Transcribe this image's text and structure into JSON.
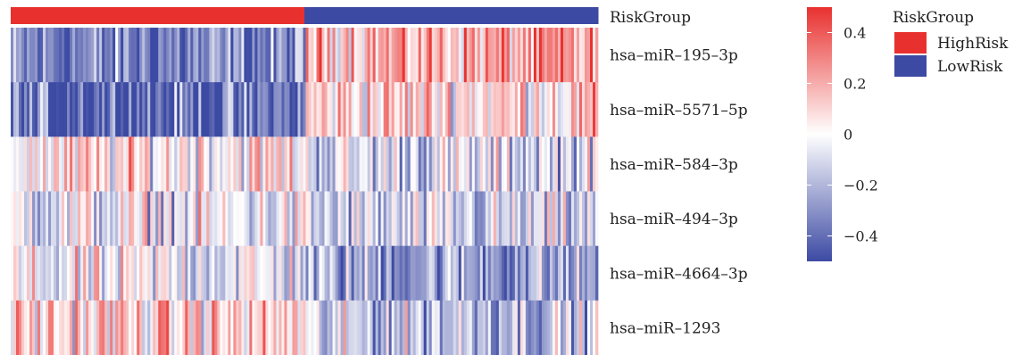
{
  "chart_data": {
    "type": "heatmap",
    "annotation": {
      "label": "RiskGroup",
      "legend_title": "RiskGroup",
      "groups": [
        {
          "name": "HighRisk",
          "color": "#e8312f",
          "fraction": 0.5
        },
        {
          "name": "LowRisk",
          "color": "#3c4aa3",
          "fraction": 0.5
        }
      ]
    },
    "rows": [
      "hsa–miR–195–3p",
      "hsa–miR–5571–5p",
      "hsa–miR–584–3p",
      "hsa–miR–494–3p",
      "hsa–miR–4664–3p",
      "hsa–miR–1293"
    ],
    "n_samples": 219,
    "colorbar": {
      "range": [
        -0.5,
        0.5
      ],
      "ticks": [
        0.4,
        0.2,
        0,
        -0.2,
        -0.4
      ],
      "tick_labels": [
        "0.4",
        "0.2",
        "0",
        "−0.2",
        "−0.4"
      ],
      "low_color": "#3c4aa3",
      "mid_color": "#ffffff",
      "high_color": "#e8312f"
    },
    "row_mean_by_group": {
      "HighRisk": [
        -0.35,
        -0.4,
        0.05,
        -0.05,
        -0.05,
        0.1
      ],
      "LowRisk": [
        0.2,
        0.1,
        -0.1,
        -0.15,
        -0.25,
        -0.15
      ]
    }
  }
}
